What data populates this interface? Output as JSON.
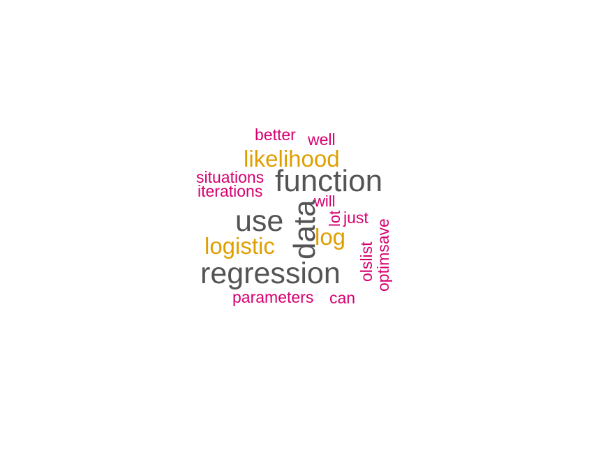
{
  "colors": {
    "large": "#545454",
    "medium": "#E09F00",
    "small": "#D6006F",
    "background": "#FFFFFF"
  },
  "words": [
    {
      "text": "regression",
      "tier": "large"
    },
    {
      "text": "function",
      "tier": "large"
    },
    {
      "text": "data",
      "tier": "large"
    },
    {
      "text": "use",
      "tier": "large"
    },
    {
      "text": "likelihood",
      "tier": "medium"
    },
    {
      "text": "logistic",
      "tier": "medium"
    },
    {
      "text": "log",
      "tier": "medium"
    },
    {
      "text": "better",
      "tier": "small"
    },
    {
      "text": "well",
      "tier": "small"
    },
    {
      "text": "situations",
      "tier": "small"
    },
    {
      "text": "iterations",
      "tier": "small"
    },
    {
      "text": "will",
      "tier": "small"
    },
    {
      "text": "lot",
      "tier": "small"
    },
    {
      "text": "just",
      "tier": "small"
    },
    {
      "text": "optimsave",
      "tier": "small"
    },
    {
      "text": "olslist",
      "tier": "small"
    },
    {
      "text": "parameters",
      "tier": "small"
    },
    {
      "text": "can",
      "tier": "small"
    }
  ]
}
